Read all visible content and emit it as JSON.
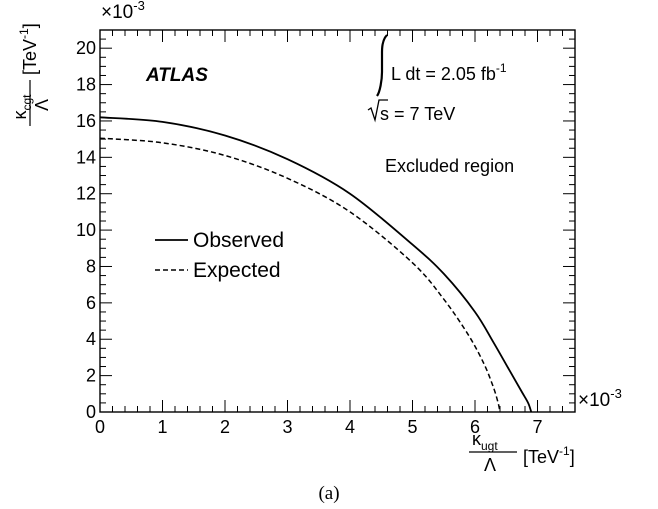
{
  "chart_data": {
    "type": "line",
    "x_scale_label": "×10",
    "x_scale_exp": "-3",
    "y_scale_label": "×10",
    "y_scale_exp": "-3",
    "xlim": [
      0,
      7.6
    ],
    "ylim": [
      0,
      21
    ],
    "x_ticks": [
      0,
      1,
      2,
      3,
      4,
      5,
      6,
      7
    ],
    "y_ticks": [
      0,
      2,
      4,
      6,
      8,
      10,
      12,
      14,
      16,
      18,
      20
    ],
    "xlabel": {
      "kappa": "κ",
      "sub": "ugt",
      "denominator": "Λ",
      "unit": "[TeV",
      "unit_exp": "-1",
      "unit_close": "]"
    },
    "ylabel": {
      "kappa": "κ",
      "sub": "cgt",
      "denominator": "Λ",
      "unit": "[TeV",
      "unit_exp": "-1",
      "unit_close": "]"
    },
    "series": [
      {
        "name": "Observed",
        "style": "solid",
        "color": "#000000",
        "x": [
          0,
          1,
          2,
          3,
          4,
          5,
          5.5,
          6,
          6.3,
          6.55,
          6.75,
          6.85,
          6.9
        ],
        "y": [
          16.2,
          15.95,
          15.2,
          13.9,
          12.0,
          9.2,
          7.6,
          5.5,
          3.8,
          2.3,
          1.1,
          0.5,
          0
        ]
      },
      {
        "name": "Expected",
        "style": "dashed",
        "color": "#000000",
        "x": [
          0,
          1,
          2,
          3,
          4,
          5,
          5.5,
          5.9,
          6.15,
          6.3,
          6.37,
          6.4
        ],
        "y": [
          15.05,
          14.8,
          14.1,
          12.85,
          11.0,
          8.2,
          6.2,
          4.2,
          2.6,
          1.3,
          0.5,
          0
        ]
      }
    ],
    "legend": {
      "placement": "middle-left",
      "entries": [
        "Observed",
        "Expected"
      ]
    },
    "annotations": {
      "experiment": "ATLAS",
      "lumi_text": "L dt = 2.05 fb",
      "lumi_exp": "-1",
      "energy_text": "s = 7 TeV",
      "region_text": "Excluded region"
    },
    "caption": "(a)"
  }
}
